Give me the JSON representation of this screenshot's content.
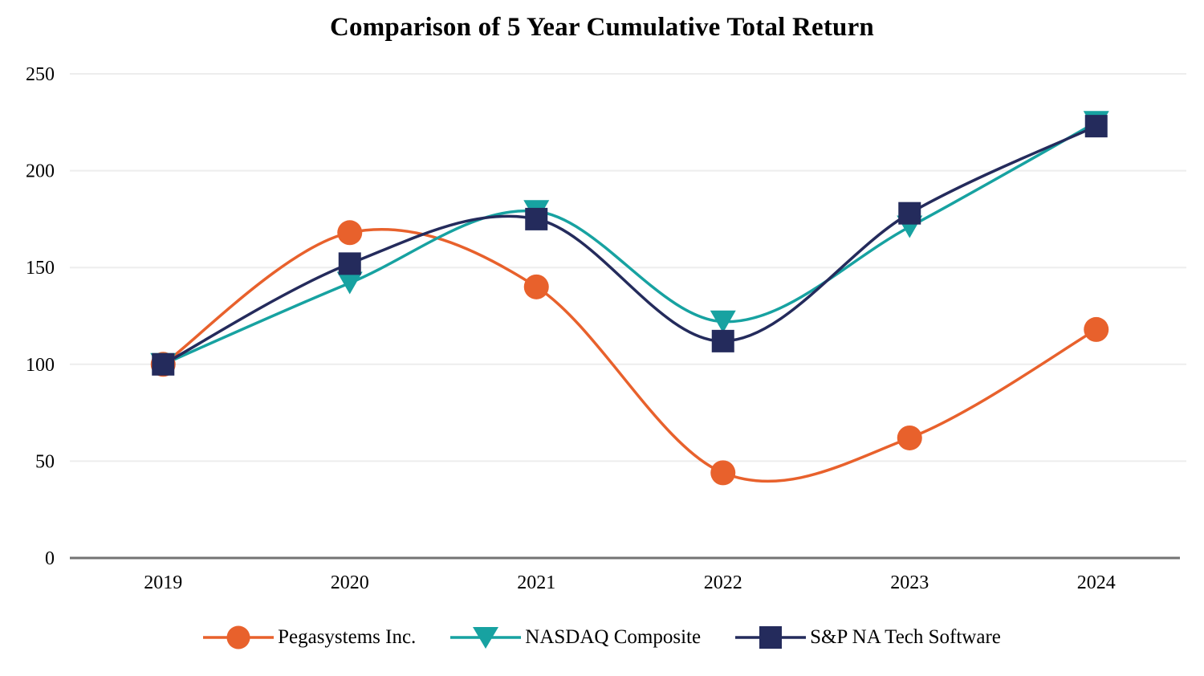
{
  "title": "Comparison of 5 Year Cumulative Total Return",
  "chart_data": {
    "type": "line",
    "line_style": "smooth",
    "categories": [
      "2019",
      "2020",
      "2021",
      "2022",
      "2023",
      "2024"
    ],
    "series": [
      {
        "name": "Pegasystems Inc.",
        "color": "#E8612C",
        "marker": "circle",
        "values": [
          100,
          168,
          140,
          44,
          62,
          118
        ]
      },
      {
        "name": "NASDAQ Composite",
        "color": "#17A2A1",
        "marker": "triangle-down",
        "values": [
          100,
          142,
          179,
          122,
          171,
          225
        ]
      },
      {
        "name": "S&P NA Tech Software",
        "color": "#242B5C",
        "marker": "square",
        "values": [
          100,
          152,
          175,
          112,
          178,
          223
        ]
      }
    ],
    "title": "Comparison of 5 Year Cumulative Total Return",
    "xlabel": "",
    "ylabel": "",
    "ylim": [
      0,
      250
    ],
    "yticks": [
      0,
      50,
      100,
      150,
      200,
      250
    ],
    "grid": true,
    "legend_position": "bottom"
  },
  "style": {
    "grid_color": "#EDEDED",
    "axis_line_color": "#737373",
    "tick_label_color": "#000000"
  }
}
